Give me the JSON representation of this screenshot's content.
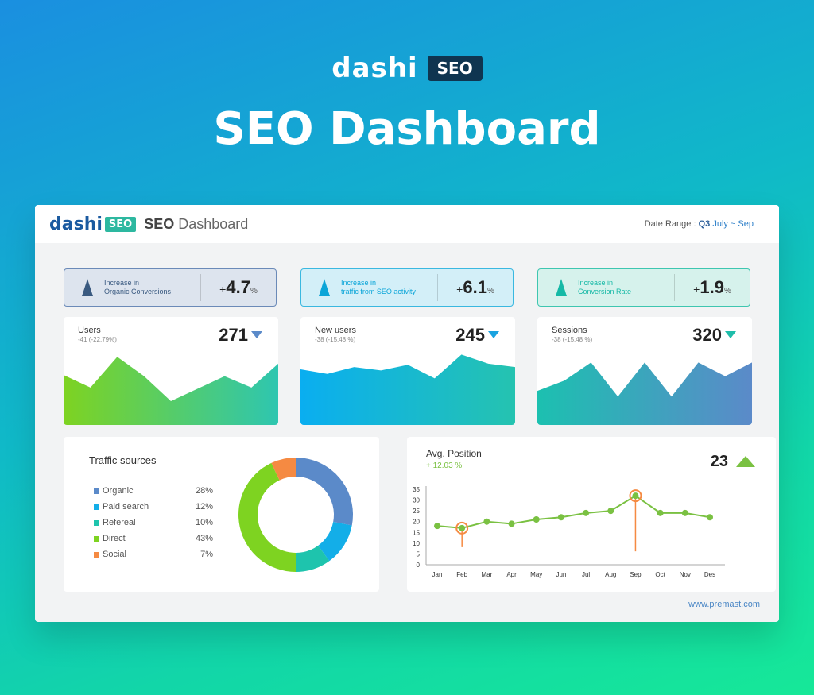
{
  "hero": {
    "logo_text": "dashi",
    "logo_badge": "SEO",
    "title": "SEO Dashboard"
  },
  "header": {
    "logo_text": "dashi",
    "logo_badge": "SEO",
    "title_bold": "SEO",
    "title_rest": "Dashboard",
    "date_range_label": "Date Range :",
    "date_range_quarter": "Q3",
    "date_range_period": "July ~ Sep"
  },
  "kpis": [
    {
      "label_line1": "Increase in",
      "label_line2": "Organic Conversions",
      "sign": "+",
      "value": "4.7",
      "unit": "%",
      "color": "#3a5a80",
      "bg": "#dde4ee",
      "border": "#6b8ab8"
    },
    {
      "label_line1": "Increase in",
      "label_line2": "traffic from SEO activity",
      "sign": "+",
      "value": "6.1",
      "unit": "%",
      "color": "#0aa5d8",
      "bg": "#d3eff8",
      "border": "#3ab8e0"
    },
    {
      "label_line1": "Increase in",
      "label_line2": "Conversion Rate",
      "sign": "+",
      "value": "1.9",
      "unit": "%",
      "color": "#15b9a6",
      "bg": "#d6f2ec",
      "border": "#3ec6b0"
    }
  ],
  "metrics": [
    {
      "title": "Users",
      "delta": "-41 (-22.79%)",
      "value": "271",
      "arrow": "down",
      "arrow_color": "#5b8ac9",
      "series": [
        44,
        33,
        60,
        43,
        21,
        32,
        43,
        33,
        54
      ],
      "gradient": [
        "#7ed321",
        "#2ec6b0"
      ]
    },
    {
      "title": "New users",
      "delta": "-38 (-15.48 %)",
      "value": "245",
      "arrow": "down",
      "arrow_color": "#1aa3e0",
      "series": [
        49,
        45,
        51,
        48,
        53,
        41,
        62,
        54,
        51
      ],
      "gradient": [
        "#0aaef0",
        "#25c3b0"
      ]
    },
    {
      "title": "Sessions",
      "delta": "-38 (-15.48 %)",
      "value": "320",
      "arrow": "down",
      "arrow_color": "#1fbdaa",
      "series": [
        30,
        39,
        55,
        25,
        55,
        25,
        55,
        43,
        55
      ],
      "gradient": [
        "#1cc0b0",
        "#5b8ac9"
      ]
    }
  ],
  "traffic": {
    "title": "Traffic sources",
    "items": [
      {
        "name": "Organic",
        "percent": "28%",
        "value": 28,
        "color": "#5b8ac9"
      },
      {
        "name": "Paid search",
        "percent": "12%",
        "value": 12,
        "color": "#13aee8"
      },
      {
        "name": "Refereal",
        "percent": "10%",
        "value": 10,
        "color": "#1ec4ad"
      },
      {
        "name": "Direct",
        "percent": "43%",
        "value": 43,
        "color": "#7ed321"
      },
      {
        "name": "Social",
        "percent": "7%",
        "value": 7,
        "color": "#f58a42"
      }
    ]
  },
  "avg_position": {
    "title": "Avg. Position",
    "change": "+ 12.03 %",
    "value": "23",
    "chart_data": {
      "type": "line",
      "categories": [
        "Jan",
        "Feb",
        "Mar",
        "Apr",
        "May",
        "Jun",
        "Jul",
        "Aug",
        "Sep",
        "Oct",
        "Nov",
        "Des"
      ],
      "series": [
        {
          "values": [
            18,
            17,
            20,
            19,
            21,
            22,
            24,
            25,
            32,
            24,
            24,
            22
          ]
        }
      ],
      "highlight": [
        "Feb",
        "Sep"
      ],
      "ylim": [
        0,
        35
      ],
      "yticks": [
        0,
        5,
        10,
        15,
        20,
        25,
        30,
        35
      ],
      "line_color": "#7ac142",
      "highlight_color": "#f58a42"
    }
  },
  "footer": "www.premast.com"
}
